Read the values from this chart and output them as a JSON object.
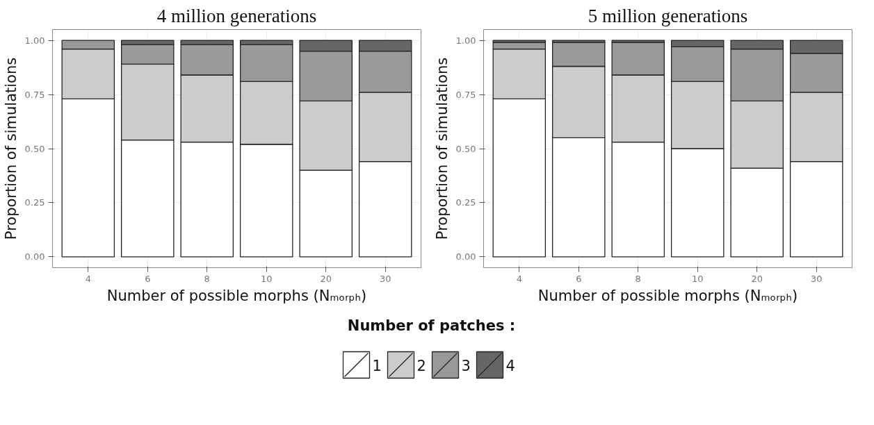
{
  "chart_data": [
    {
      "type": "bar",
      "title": "4 million generations",
      "xlabel": "Number of possible morphs (Nₘₒᵣₚₕ)",
      "ylabel": "Proportion of simulations",
      "categories": [
        "4",
        "6",
        "8",
        "10",
        "20",
        "30"
      ],
      "stacked": true,
      "ylim": [
        -0.05,
        1.05
      ],
      "yticks": [
        {
          "value": 0,
          "label": "0.00"
        },
        {
          "value": 0.25,
          "label": "0.25"
        },
        {
          "value": 0.5,
          "label": "0.50"
        },
        {
          "value": 0.75,
          "label": "0.75"
        },
        {
          "value": 1,
          "label": "1.00"
        }
      ],
      "grid": true,
      "legend": "bottom",
      "legend_title": "Number of patches :",
      "series": [
        {
          "name": "1",
          "color": "#ffffff",
          "values": [
            0.73,
            0.54,
            0.53,
            0.52,
            0.4,
            0.44
          ]
        },
        {
          "name": "2",
          "color": "#cccccc",
          "values": [
            0.23,
            0.35,
            0.31,
            0.29,
            0.32,
            0.32
          ]
        },
        {
          "name": "3",
          "color": "#999999",
          "values": [
            0.04,
            0.09,
            0.14,
            0.17,
            0.23,
            0.19
          ]
        },
        {
          "name": "4",
          "color": "#666666",
          "values": [
            null,
            0.02,
            0.02,
            0.02,
            0.05,
            0.05
          ]
        }
      ]
    },
    {
      "type": "bar",
      "title": "5 million generations",
      "xlabel": "Number of possible morphs (Nₘₒᵣₚₕ)",
      "ylabel": "Proportion of simulations",
      "categories": [
        "4",
        "6",
        "8",
        "10",
        "20",
        "30"
      ],
      "stacked": true,
      "ylim": [
        -0.05,
        1.05
      ],
      "yticks": [
        {
          "value": 0,
          "label": "0.00"
        },
        {
          "value": 0.25,
          "label": "0.25"
        },
        {
          "value": 0.5,
          "label": "0.50"
        },
        {
          "value": 0.75,
          "label": "0.75"
        },
        {
          "value": 1,
          "label": "1.00"
        }
      ],
      "grid": true,
      "series": [
        {
          "color": "#ffffff",
          "values": [
            0.73,
            0.55,
            0.53,
            0.5,
            0.41,
            0.44
          ]
        },
        {
          "color": "#cccccc",
          "values": [
            0.23,
            0.33,
            0.31,
            0.31,
            0.31,
            0.32
          ]
        },
        {
          "color": "#999999",
          "values": [
            0.03,
            0.11,
            0.15,
            0.16,
            0.24,
            0.18
          ]
        },
        {
          "color": "#666666",
          "values": [
            0.01,
            0.01,
            0.01,
            0.03,
            0.04,
            0.06
          ]
        }
      ]
    }
  ]
}
